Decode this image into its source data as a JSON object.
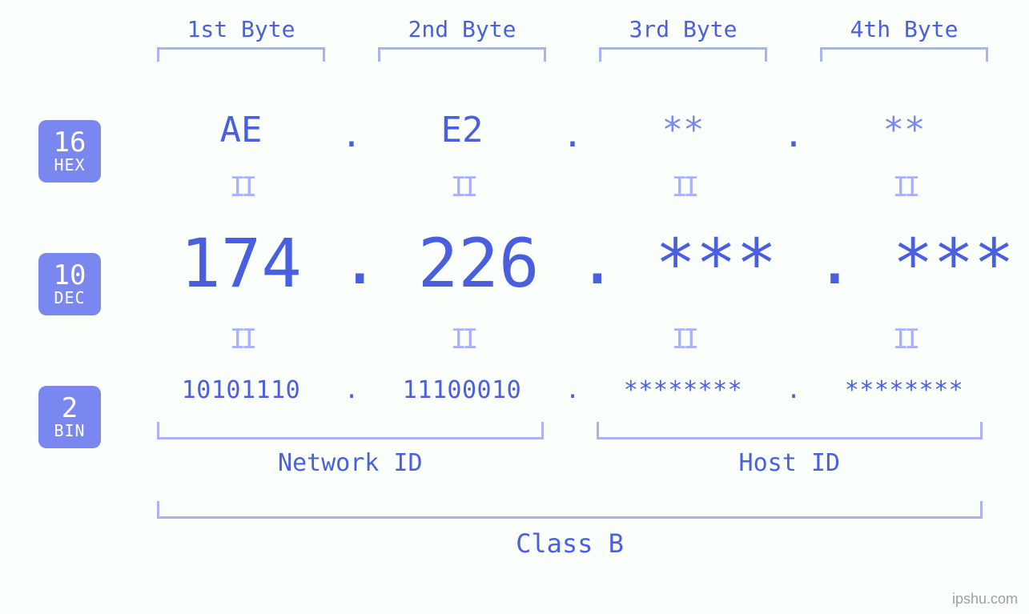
{
  "type": "ip-address-diagram",
  "colors": {
    "background": "#fbfffb",
    "text_primary": "#4a5ee0",
    "text_secondary": "#7a87ee",
    "bracket": "#aab2f7",
    "badge_bg": "#7a87ee",
    "badge_fg": "#ffffff",
    "watermark": "#9aa0a8"
  },
  "badges": [
    {
      "base": "16",
      "label": "HEX"
    },
    {
      "base": "10",
      "label": "DEC"
    },
    {
      "base": "2",
      "label": "BIN"
    }
  ],
  "byte_headers": [
    "1st Byte",
    "2nd Byte",
    "3rd Byte",
    "4th Byte"
  ],
  "hex": [
    "AE",
    "E2",
    "**",
    "**"
  ],
  "dec": [
    "174",
    "226",
    "***",
    "***"
  ],
  "bin": [
    "10101110",
    "11100010",
    "********",
    "********"
  ],
  "separator": ".",
  "equals_glyph": "II",
  "sections": {
    "network": {
      "label": "Network ID",
      "span_bytes": [
        1,
        2
      ]
    },
    "host": {
      "label": "Host ID",
      "span_bytes": [
        3,
        4
      ]
    }
  },
  "class_label": "Class B",
  "font_family": "monospace",
  "font_sizes": {
    "byte_header": 28,
    "hex": 44,
    "dec": 84,
    "bin": 30,
    "equals": 34,
    "section_label": 30,
    "class_label": 32,
    "badge_number": 34,
    "badge_label": 20
  },
  "watermark": "ipshu.com"
}
